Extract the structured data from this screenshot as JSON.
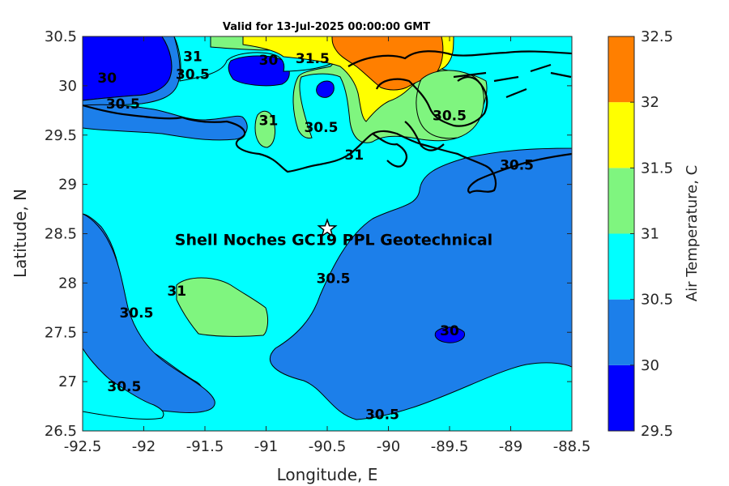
{
  "chart_data": {
    "type": "contourf",
    "title": "Valid for 13-Jul-2025 00:00:00 GMT",
    "xlabel": "Longitude, E",
    "ylabel": "Latitude, N",
    "xlim": [
      -92.5,
      -88.5
    ],
    "ylim": [
      26.5,
      30.5
    ],
    "xticks": [
      "-92.5",
      "-92",
      "-91.5",
      "-91",
      "-90.5",
      "-90",
      "-89.5",
      "-89",
      "-88.5"
    ],
    "yticks": [
      "26.5",
      "27",
      "27.5",
      "28",
      "28.5",
      "29",
      "29.5",
      "30",
      "30.5"
    ],
    "colorbar": {
      "label": "Air Temperature, C",
      "ticks": [
        "29.5",
        "30",
        "30.5",
        "31",
        "31.5",
        "32",
        "32.5"
      ],
      "levels": [
        29.5,
        30,
        30.5,
        31,
        31.5,
        32,
        32.5
      ],
      "colors": [
        "#0000ff",
        "#1c7fea",
        "#00ffff",
        "#7ff57f",
        "#ffff00",
        "#ff7f00",
        "#ff0000"
      ]
    },
    "annotation": {
      "text": "Shell Noches   GC19 PPL  Geotechnical",
      "marker": "star",
      "lon": -90.5,
      "lat": 28.55
    },
    "contour_labels": [
      {
        "text": "30",
        "lon": -92.3,
        "lat": 30.08
      },
      {
        "text": "30.5",
        "lon": -92.17,
        "lat": 29.82
      },
      {
        "text": "31",
        "lon": -91.6,
        "lat": 30.3
      },
      {
        "text": "30.5",
        "lon": -91.6,
        "lat": 30.12
      },
      {
        "text": "30",
        "lon": -90.98,
        "lat": 30.26
      },
      {
        "text": "31.5",
        "lon": -90.62,
        "lat": 30.28
      },
      {
        "text": "31",
        "lon": -90.98,
        "lat": 29.65
      },
      {
        "text": "30.5",
        "lon": -90.55,
        "lat": 29.58
      },
      {
        "text": "31",
        "lon": -90.28,
        "lat": 29.3
      },
      {
        "text": "30.5",
        "lon": -89.5,
        "lat": 29.7
      },
      {
        "text": "30.5",
        "lon": -88.95,
        "lat": 29.2
      },
      {
        "text": "30.5",
        "lon": -90.45,
        "lat": 28.05
      },
      {
        "text": "31",
        "lon": -91.73,
        "lat": 27.92
      },
      {
        "text": "30.5",
        "lon": -92.06,
        "lat": 27.7
      },
      {
        "text": "30",
        "lon": -89.5,
        "lat": 27.52
      },
      {
        "text": "30.5",
        "lon": -92.16,
        "lat": 26.95
      },
      {
        "text": "30.5",
        "lon": -90.05,
        "lat": 26.67
      }
    ]
  }
}
